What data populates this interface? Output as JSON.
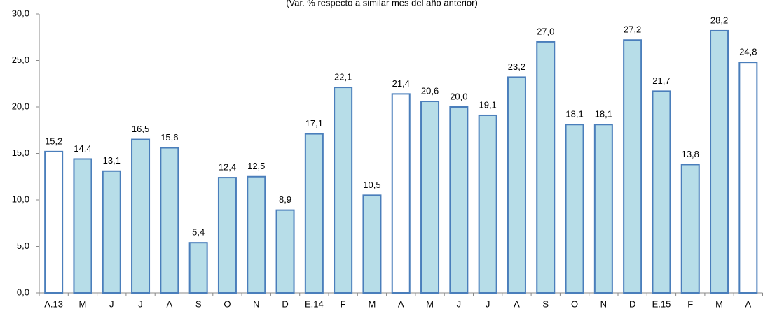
{
  "chart_data": {
    "type": "bar",
    "subtitle": "(Var. % respecto a similar mes del año anterior)",
    "categories": [
      "A.13",
      "M",
      "J",
      "J",
      "A",
      "S",
      "O",
      "N",
      "D",
      "E.14",
      "F",
      "M",
      "A",
      "M",
      "J",
      "J",
      "A",
      "S",
      "O",
      "N",
      "D",
      "E.15",
      "F",
      "M",
      "A"
    ],
    "values": [
      15.2,
      14.4,
      13.1,
      16.5,
      15.6,
      5.4,
      12.4,
      12.5,
      8.9,
      17.1,
      22.1,
      10.5,
      21.4,
      20.6,
      20.0,
      19.1,
      23.2,
      27.0,
      18.1,
      18.1,
      27.2,
      21.7,
      13.8,
      28.2,
      24.8
    ],
    "value_labels": [
      "15,2",
      "14,4",
      "13,1",
      "16,5",
      "15,6",
      "5,4",
      "12,4",
      "12,5",
      "8,9",
      "17,1",
      "22,1",
      "10,5",
      "21,4",
      "20,6",
      "20,0",
      "19,1",
      "23,2",
      "27,0",
      "18,1",
      "18,1",
      "27,2",
      "21,7",
      "13,8",
      "28,2",
      "24,8"
    ],
    "colors": [
      "#ffffff",
      "#b7dde8",
      "#b7dde8",
      "#b7dde8",
      "#b7dde8",
      "#b7dde8",
      "#b7dde8",
      "#b7dde8",
      "#b7dde8",
      "#b7dde8",
      "#b7dde8",
      "#b7dde8",
      "#ffffff",
      "#b7dde8",
      "#b7dde8",
      "#b7dde8",
      "#b7dde8",
      "#b7dde8",
      "#b7dde8",
      "#b7dde8",
      "#b7dde8",
      "#b7dde8",
      "#b7dde8",
      "#b7dde8",
      "#ffffff"
    ],
    "edge_color": "#4a7ebb",
    "ylim": [
      0,
      30
    ],
    "yticks": [
      {
        "value": 0,
        "label": "0,0"
      },
      {
        "value": 5,
        "label": "5,0"
      },
      {
        "value": 10,
        "label": "10,0"
      },
      {
        "value": 15,
        "label": "15,0"
      },
      {
        "value": 20,
        "label": "20,0"
      },
      {
        "value": 25,
        "label": "25,0"
      },
      {
        "value": 30,
        "label": "30,0"
      }
    ],
    "grid": false
  }
}
